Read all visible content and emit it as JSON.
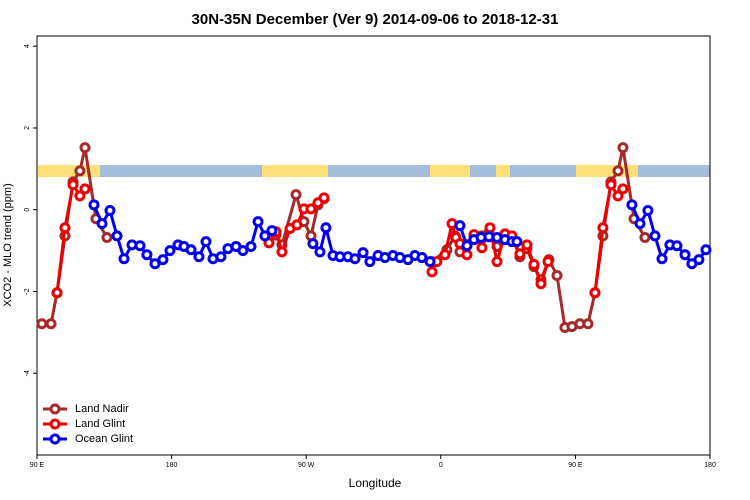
{
  "chart_data": {
    "type": "line",
    "title": "30N-35N December (Ver 9)   2014-09-06 to 2018-12-31",
    "x_label": "Longitude",
    "y_label": "XCO2 - MLO trend (ppm)",
    "xlim": [
      90,
      540
    ],
    "xticks": [
      {
        "value": 90,
        "label": "90 E"
      },
      {
        "value": 180,
        "label": "180"
      },
      {
        "value": 270,
        "label": "90 W"
      },
      {
        "value": 360,
        "label": "0"
      },
      {
        "value": 450,
        "label": "90 E"
      },
      {
        "value": 540,
        "label": "180"
      }
    ],
    "ylim": [
      -6,
      4.25
    ],
    "yticks": [
      4,
      2,
      0,
      -2,
      -4
    ],
    "grid": false,
    "legend": "bottomleft",
    "series": [
      {
        "name": "Land Nadir",
        "color": "#a52a2a",
        "x": [
          93.3,
          99.4,
          103.4,
          108.7,
          114.1,
          118.7,
          122.1,
          129.4,
          136.8,
          null,
          249.8,
          253.8,
          263.2,
          268.5,
          273.2,
          277.9,
          281.9,
          null,
          354.1,
          364.1,
          369.5,
          372.8,
          377.5,
          382.2,
          387.5,
          392.2,
          397.6,
          402.9,
          407.6,
          412.9,
          417.6,
          422.3,
          427,
          432.3,
          437.7,
          443,
          447.7,
          453,
          458.4,
          463.1,
          468.4,
          473.8,
          478.5,
          481.8,
          489.2,
          496.5
        ],
        "values": [
          -2.79,
          -2.79,
          -2.03,
          -0.64,
          0.68,
          0.95,
          1.52,
          -0.22,
          -0.68,
          null,
          -0.62,
          -0.86,
          0.37,
          -0.29,
          -0.64,
          0.12,
          0.27,
          null,
          -1.27,
          -0.98,
          -0.64,
          -1.03,
          -0.85,
          -0.66,
          -0.64,
          -0.56,
          -0.9,
          -0.68,
          -0.66,
          -1.15,
          -0.95,
          -1.39,
          -1.71,
          -1.22,
          -1.61,
          -2.88,
          -2.86,
          -2.79,
          -2.79,
          -2.03,
          -0.64,
          0.68,
          0.95,
          1.52,
          -0.22,
          -0.68
        ]
      },
      {
        "name": "Land Glint",
        "color": "#ee0000",
        "x": [
          103.4,
          108.7,
          114.1,
          118.7,
          122.1,
          null,
          245.1,
          249.8,
          253.8,
          259.2,
          263.8,
          268.5,
          273.2,
          277.9,
          281.9,
          null,
          354.1,
          357.4,
          362.8,
          367.5,
          370.1,
          372.8,
          377.5,
          382.2,
          387.5,
          392.9,
          397.6,
          402.9,
          407.6,
          412.9,
          417.6,
          422.3,
          427,
          431.7,
          null,
          463.1,
          468.4,
          473.8,
          478.5,
          481.8
        ],
        "values": [
          -2.03,
          -0.44,
          0.61,
          0.34,
          0.51,
          null,
          -0.81,
          -0.54,
          -1.03,
          -0.46,
          -0.37,
          0.02,
          0.02,
          0.17,
          0.29,
          null,
          -1.52,
          -1.27,
          -1.1,
          -0.34,
          -0.68,
          -0.83,
          -1.1,
          -0.61,
          -0.93,
          -0.44,
          -1.27,
          -0.59,
          -0.64,
          -1.08,
          -0.86,
          -1.34,
          -1.81,
          -1.27,
          null,
          -2.03,
          -0.44,
          0.61,
          0.34,
          0.51
        ]
      },
      {
        "name": "Ocean Glint",
        "color": "#0000ee",
        "x": [
          128.1,
          133.5,
          138.8,
          143.5,
          148.2,
          153.5,
          158.9,
          163.5,
          168.9,
          174.2,
          178.9,
          184.3,
          188.3,
          193,
          198.3,
          203,
          207.7,
          213,
          217.7,
          223.1,
          227.7,
          233.1,
          237.8,
          242.4,
          247.1,
          null,
          274.5,
          279.2,
          283.2,
          287.9,
          292.6,
          297.9,
          302.6,
          308,
          312.6,
          318,
          322.7,
          328,
          332.7,
          338.1,
          342.7,
          347.4,
          352.8,
          null,
          372.8,
          377.5,
          382.2,
          386.9,
          392.2,
          397.6,
          402.9,
          407.6,
          410.9,
          null,
          487.8,
          493.2,
          498.5,
          503.2,
          507.9,
          513.2,
          517.9,
          523.3,
          527.9,
          532.6,
          537.3
        ],
        "values": [
          0.12,
          -0.34,
          -0.02,
          -0.64,
          -1.2,
          -0.86,
          -0.88,
          -1.1,
          -1.32,
          -1.22,
          -1,
          -0.86,
          -0.9,
          -0.98,
          -1.15,
          -0.78,
          -1.2,
          -1.15,
          -0.95,
          -0.9,
          -1,
          -0.9,
          -0.29,
          -0.64,
          -0.51,
          null,
          -0.83,
          -1.03,
          -0.44,
          -1.12,
          -1.15,
          -1.15,
          -1.2,
          -1.05,
          -1.27,
          -1.12,
          -1.17,
          -1.12,
          -1.17,
          -1.22,
          -1.12,
          -1.17,
          -1.27,
          null,
          -0.39,
          -0.88,
          -0.73,
          -0.68,
          -0.66,
          -0.68,
          -0.73,
          -0.78,
          -0.78,
          null,
          0.12,
          -0.34,
          -0.02,
          -0.64,
          -1.2,
          -0.86,
          -0.88,
          -1.1,
          -1.32,
          -1.22,
          -0.98
        ]
      }
    ]
  }
}
